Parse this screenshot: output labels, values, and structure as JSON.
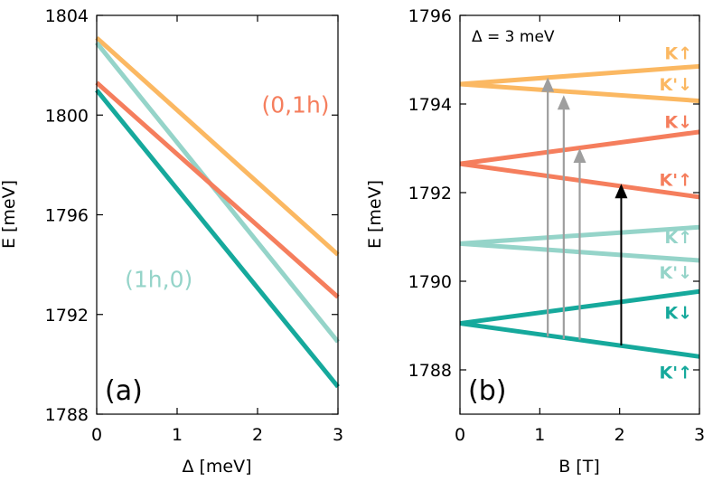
{
  "colors": {
    "orange": "#fbb862",
    "salmon": "#f57e5d",
    "lightteal": "#95d4c9",
    "teal": "#16a99c",
    "gray": "#9e9e9e",
    "black": "#000000"
  },
  "chart_data": [
    {
      "type": "line",
      "panel_label": "(a)",
      "xlabel": "Δ [meV]",
      "ylabel": "E [meV]",
      "xlim": [
        0,
        3
      ],
      "ylim": [
        1788,
        1804
      ],
      "xticks": [
        0,
        1,
        2,
        3
      ],
      "yticks": [
        1788,
        1792,
        1796,
        1800,
        1804
      ],
      "grid": false,
      "series": [
        {
          "color": "orange",
          "x": [
            0,
            3
          ],
          "y": [
            1803.1,
            1794.4
          ]
        },
        {
          "color": "lightteal",
          "x": [
            0,
            3
          ],
          "y": [
            1802.9,
            1790.9
          ]
        },
        {
          "color": "salmon",
          "x": [
            0,
            3
          ],
          "y": [
            1801.3,
            1792.7
          ]
        },
        {
          "color": "teal",
          "x": [
            0,
            3
          ],
          "y": [
            1801.0,
            1789.1
          ]
        }
      ],
      "annotations": [
        {
          "text": "(0,1h)",
          "color": "salmon",
          "x": 2.05,
          "y": 1800.1
        },
        {
          "text": "(1h,0)",
          "color": "lightteal",
          "x": 0.35,
          "y": 1793.1
        }
      ]
    },
    {
      "type": "line",
      "panel_label": "(b)",
      "xlabel": "B [T]",
      "ylabel": "E [meV]",
      "xlim": [
        0,
        3
      ],
      "ylim": [
        1787,
        1796
      ],
      "xticks": [
        0,
        1,
        2,
        3
      ],
      "yticks": [
        1788,
        1790,
        1792,
        1794,
        1796
      ],
      "grid": false,
      "annotation": "Δ = 3 meV",
      "series": [
        {
          "name": "K↑",
          "color": "orange",
          "x": [
            0,
            3
          ],
          "y": [
            1794.45,
            1794.85
          ]
        },
        {
          "name": "K'↓",
          "color": "orange",
          "x": [
            0,
            3
          ],
          "y": [
            1794.45,
            1794.07
          ]
        },
        {
          "name": "K↓",
          "color": "salmon",
          "x": [
            0,
            3
          ],
          "y": [
            1792.65,
            1793.37
          ]
        },
        {
          "name": "K'↑",
          "color": "salmon",
          "x": [
            0,
            3
          ],
          "y": [
            1792.65,
            1791.9
          ]
        },
        {
          "name": "K↑",
          "color": "lightteal",
          "x": [
            0,
            3
          ],
          "y": [
            1790.85,
            1791.22
          ]
        },
        {
          "name": "K'↓",
          "color": "lightteal",
          "x": [
            0,
            3
          ],
          "y": [
            1790.85,
            1790.47
          ]
        },
        {
          "name": "K↓",
          "color": "teal",
          "x": [
            0,
            3
          ],
          "y": [
            1789.05,
            1789.77
          ]
        },
        {
          "name": "K'↑",
          "color": "teal",
          "x": [
            0,
            3
          ],
          "y": [
            1789.05,
            1788.3
          ]
        }
      ],
      "level_labels": [
        {
          "text": "K↑",
          "color": "orange",
          "y": 1795.15
        },
        {
          "text": "K'↓",
          "color": "orange",
          "y": 1794.45
        },
        {
          "text": "K↓",
          "color": "salmon",
          "y": 1793.6
        },
        {
          "text": "K'↑",
          "color": "salmon",
          "y": 1792.3
        },
        {
          "text": "K↑",
          "color": "lightteal",
          "y": 1791.0
        },
        {
          "text": "K'↓",
          "color": "lightteal",
          "y": 1790.2
        },
        {
          "text": "K↓",
          "color": "teal",
          "y": 1789.3
        },
        {
          "text": "K'↑",
          "color": "teal",
          "y": 1787.95
        }
      ],
      "arrows": [
        {
          "x": 1.1,
          "y_from": 1788.75,
          "y_to": 1794.6,
          "color": "gray"
        },
        {
          "x": 1.3,
          "y_from": 1788.7,
          "y_to": 1794.2,
          "color": "gray"
        },
        {
          "x": 1.5,
          "y_from": 1788.68,
          "y_to": 1793.0,
          "color": "gray"
        },
        {
          "x": 2.02,
          "y_from": 1788.55,
          "y_to": 1792.2,
          "color": "black"
        }
      ]
    }
  ]
}
